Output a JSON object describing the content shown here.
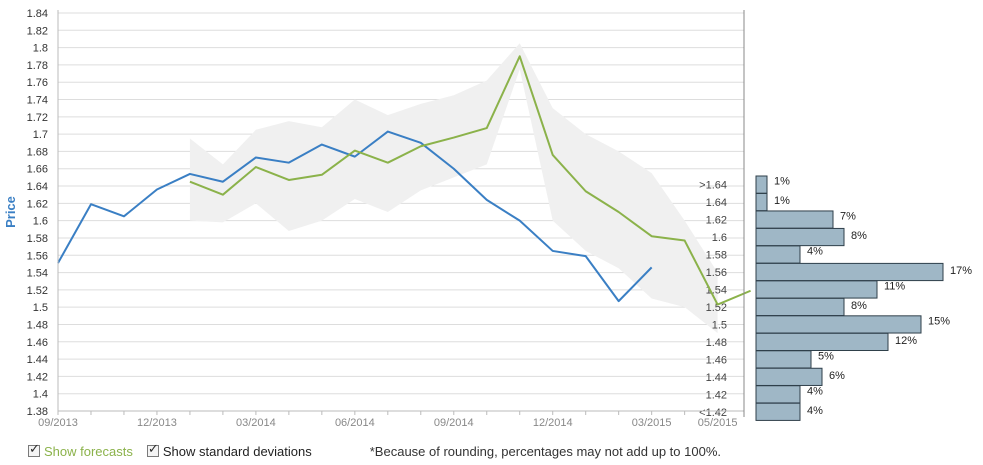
{
  "chart_data": {
    "type": "line",
    "ylabel": "Price",
    "ylim": [
      1.38,
      1.84
    ],
    "y_ticks": [
      "1.38",
      "1.4",
      "1.42",
      "1.44",
      "1.46",
      "1.48",
      "1.5",
      "1.52",
      "1.54",
      "1.56",
      "1.58",
      "1.6",
      "1.62",
      "1.64",
      "1.66",
      "1.68",
      "1.7",
      "1.72",
      "1.74",
      "1.76",
      "1.78",
      "1.8",
      "1.82",
      "1.84"
    ],
    "x_ticks": [
      "09/2013",
      "12/2013",
      "03/2014",
      "06/2014",
      "09/2014",
      "12/2014",
      "03/2015",
      "05/2015"
    ],
    "series": [
      {
        "role": "actual",
        "color": "#3a7fc4",
        "x": [
          "09/2013",
          "10/2013",
          "11/2013",
          "12/2013",
          "01/2014",
          "02/2014",
          "03/2014",
          "04/2014",
          "05/2014",
          "06/2014",
          "07/2014",
          "08/2014",
          "09/2014",
          "10/2014",
          "11/2014",
          "12/2014",
          "01/2015",
          "02/2015",
          "03/2015"
        ],
        "y": [
          1.551,
          1.619,
          1.605,
          1.636,
          1.654,
          1.645,
          1.673,
          1.667,
          1.688,
          1.674,
          1.703,
          1.69,
          1.66,
          1.624,
          1.6,
          1.565,
          1.559,
          1.507,
          1.546
        ]
      },
      {
        "role": "forecast",
        "color": "#8bb24a",
        "x": [
          "01/2014",
          "02/2014",
          "03/2014",
          "04/2014",
          "05/2014",
          "06/2014",
          "07/2014",
          "08/2014",
          "09/2014",
          "10/2014",
          "11/2014",
          "12/2014",
          "01/2015",
          "02/2015",
          "03/2015",
          "04/2015",
          "05/2015",
          "06/2015"
        ],
        "y": [
          1.645,
          1.63,
          1.662,
          1.647,
          1.653,
          1.681,
          1.667,
          1.686,
          1.696,
          1.707,
          1.79,
          1.676,
          1.634,
          1.61,
          1.582,
          1.577,
          1.503,
          1.519
        ]
      }
    ],
    "std_band": {
      "color": "#f0f0f0",
      "x": [
        "01/2014",
        "02/2014",
        "03/2014",
        "04/2014",
        "05/2014",
        "06/2014",
        "07/2014",
        "08/2014",
        "09/2014",
        "10/2014",
        "11/2014",
        "12/2014",
        "01/2015",
        "02/2015",
        "03/2015",
        "04/2015",
        "05/2015"
      ],
      "upper": [
        1.695,
        1.665,
        1.705,
        1.715,
        1.708,
        1.74,
        1.722,
        1.735,
        1.745,
        1.762,
        1.805,
        1.73,
        1.7,
        1.68,
        1.655,
        1.6,
        1.54
      ],
      "lower": [
        1.6,
        1.598,
        1.62,
        1.588,
        1.6,
        1.625,
        1.61,
        1.635,
        1.65,
        1.665,
        1.775,
        1.6,
        1.565,
        1.545,
        1.51,
        1.5,
        1.47
      ]
    },
    "histogram": {
      "color": "#9fb7c6",
      "bins": [
        {
          "label": ">1.64",
          "value": 1,
          "text": "1%"
        },
        {
          "label": "1.64",
          "value": 1,
          "text": "1%"
        },
        {
          "label": "1.62",
          "value": 7,
          "text": "7%"
        },
        {
          "label": "1.6",
          "value": 8,
          "text": "8%"
        },
        {
          "label": "1.58",
          "value": 4,
          "text": "4%"
        },
        {
          "label": "1.56",
          "value": 17,
          "text": "17%"
        },
        {
          "label": "1.54",
          "value": 11,
          "text": "11%"
        },
        {
          "label": "1.52",
          "value": 8,
          "text": "8%"
        },
        {
          "label": "1.5",
          "value": 15,
          "text": "15%"
        },
        {
          "label": "1.48",
          "value": 12,
          "text": "12%"
        },
        {
          "label": "1.46",
          "value": 5,
          "text": "5%"
        },
        {
          "label": "1.44",
          "value": 6,
          "text": "6%"
        },
        {
          "label": "1.42",
          "value": 4,
          "text": "4%"
        },
        {
          "label": "<1.42",
          "value": 4,
          "text": "4%"
        }
      ]
    }
  },
  "controls": {
    "show_forecasts": {
      "label": "Show forecasts",
      "checked": true
    },
    "show_std": {
      "label": "Show standard deviations",
      "checked": true
    }
  },
  "footnote": "*Because of rounding, percentages may not add up to 100%.",
  "icons": {
    "checkbox_check": "check-icon"
  }
}
